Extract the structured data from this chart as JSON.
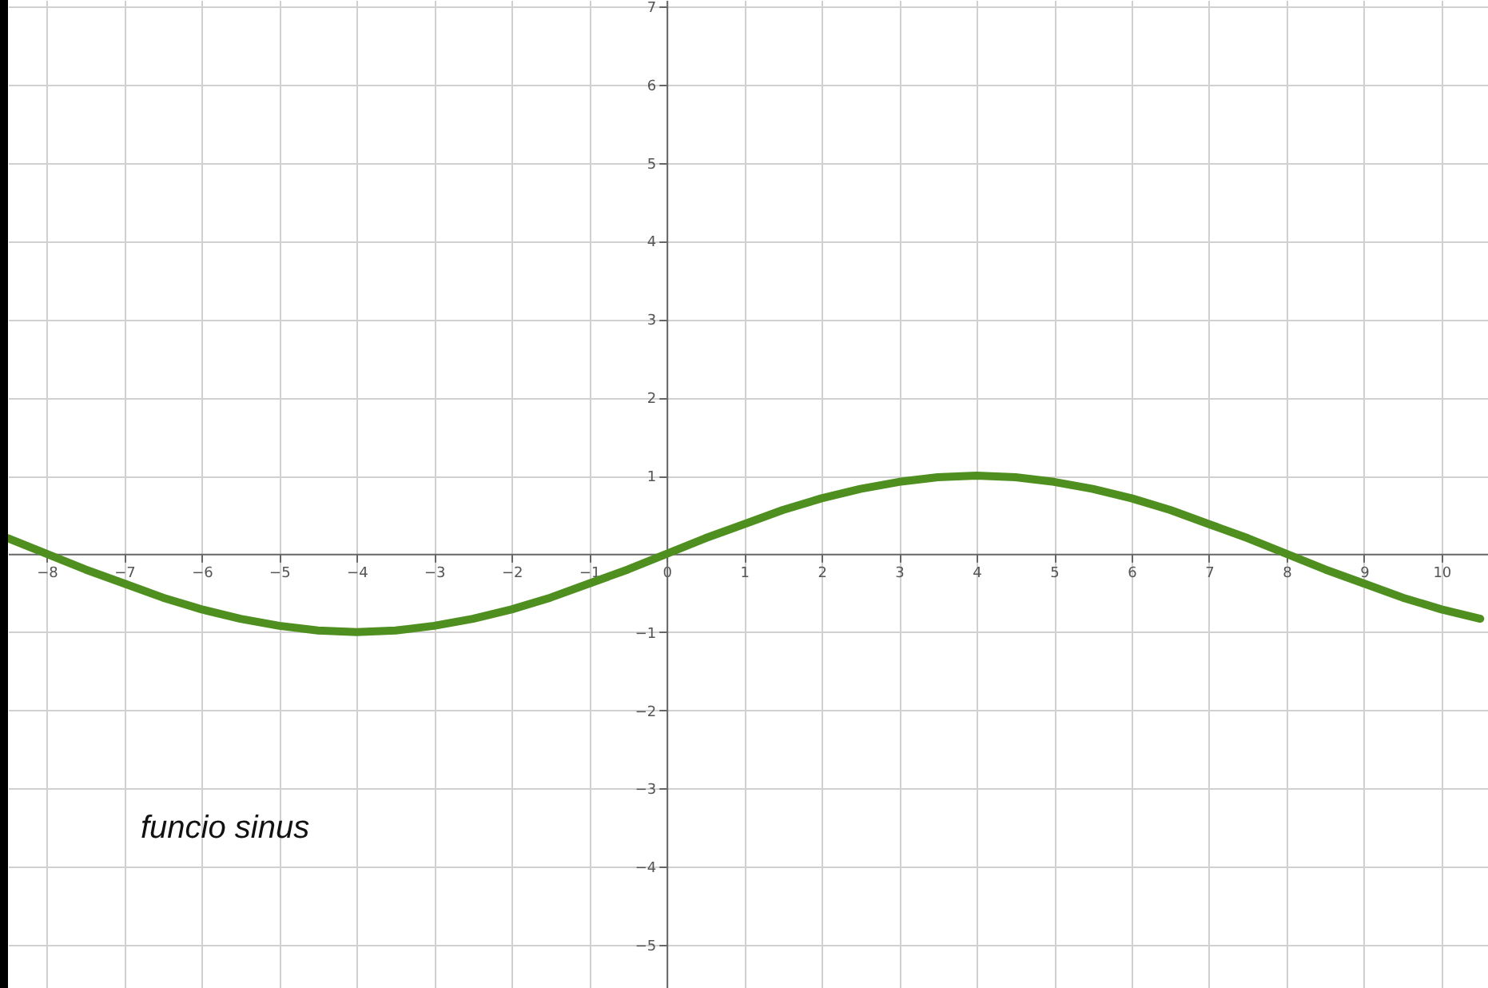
{
  "chart_data": {
    "type": "line",
    "annotations": [
      "funcio sinus"
    ],
    "x": [
      -8.5,
      -8,
      -7.5,
      -7,
      -6.5,
      -6,
      -5.5,
      -5,
      -4.5,
      -4,
      -3.5,
      -3,
      -2.5,
      -2,
      -1.5,
      -1,
      -0.5,
      0,
      0.5,
      1,
      1.5,
      2,
      2.5,
      3,
      3.5,
      4,
      4.5,
      5,
      5.5,
      6,
      6.5,
      7,
      7.5,
      8,
      8.5,
      9,
      9.5,
      10,
      10.5
    ],
    "series": [
      {
        "color": "#4e8f1f",
        "values": [
          0.2,
          0,
          -0.2,
          -0.38,
          -0.56,
          -0.71,
          -0.83,
          -0.92,
          -0.98,
          -1,
          -0.98,
          -0.92,
          -0.83,
          -0.71,
          -0.56,
          -0.38,
          -0.2,
          0,
          0.2,
          0.38,
          0.56,
          0.71,
          0.83,
          0.92,
          0.98,
          1,
          0.98,
          0.92,
          0.83,
          0.71,
          0.56,
          0.38,
          0.2,
          0,
          -0.2,
          -0.38,
          -0.56,
          -0.71,
          -0.83
        ]
      }
    ],
    "xlim": [
      -8.5,
      10.6
    ],
    "ylim": [
      -5.55,
      7.08
    ],
    "xticks": [
      -8,
      -7,
      -6,
      -5,
      -4,
      -3,
      -2,
      -1,
      0,
      1,
      2,
      3,
      4,
      5,
      6,
      7,
      8,
      9,
      10
    ],
    "yticks": [
      -5,
      -4,
      -3,
      -2,
      -1,
      1,
      2,
      3,
      4,
      5,
      6,
      7
    ],
    "grid": true,
    "marker": "none",
    "line_style": "solid"
  }
}
